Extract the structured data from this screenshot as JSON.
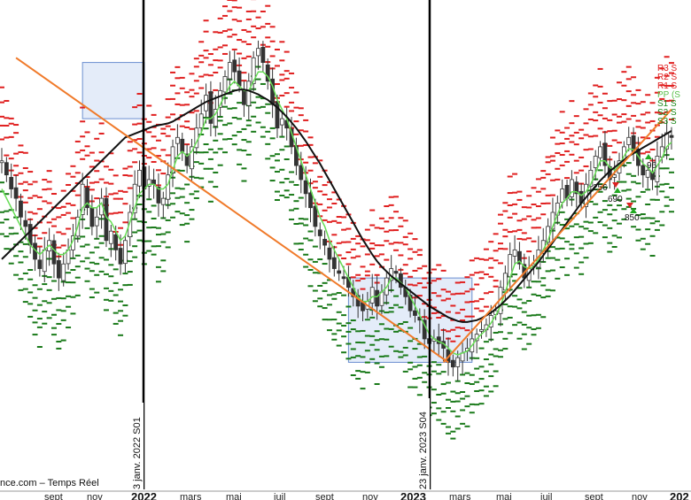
{
  "source_label": "nce.com – Temps Réel",
  "chart_data": {
    "type": "candlestick",
    "x_axis": {
      "months": [
        "sept",
        "nov",
        "mars",
        "mai",
        "juil",
        "sept",
        "nov",
        "mars",
        "mai",
        "juil",
        "sept",
        "nov"
      ],
      "years": [
        "2022",
        "2023",
        "202"
      ]
    },
    "period_markers": [
      "3 janv. 2022 S01",
      "23 janv. 2023 S04"
    ],
    "annotations": [
      "256",
      "690",
      "850",
      "96"
    ],
    "sr_labels": [
      "R3 S",
      "R2 S",
      "R1 S",
      "PP (S",
      "S1 S",
      "S2 S",
      "S3 S"
    ],
    "series": [
      {
        "name": "close",
        "color": "#333333",
        "values": [
          285,
          270,
          255,
          245,
          225,
          215,
          195,
          180,
          170,
          190,
          200,
          175,
          160,
          175,
          190,
          205,
          225,
          260,
          235,
          215,
          225,
          245,
          200,
          210,
          190,
          175,
          200,
          230,
          260,
          275,
          255,
          265,
          260,
          240,
          245,
          270,
          300,
          310,
          295,
          280,
          300,
          320,
          335,
          355,
          325,
          340,
          360,
          375,
          390,
          380,
          365,
          345,
          370,
          395,
          405,
          390,
          370,
          345,
          320,
          330,
          320,
          300,
          280,
          265,
          250,
          235,
          215,
          205,
          195,
          180,
          170,
          165,
          160,
          150,
          140,
          130,
          125,
          135,
          150,
          130,
          145,
          160,
          170,
          165,
          150,
          140,
          125,
          120,
          115,
          95,
          90,
          95,
          90,
          85,
          70,
          65,
          75,
          80,
          85,
          95,
          100,
          105,
          110,
          120,
          125,
          150,
          165,
          185,
          190,
          175,
          160,
          170,
          175,
          190,
          200,
          215,
          230,
          240,
          255,
          245,
          265,
          250,
          240,
          260,
          275,
          290,
          300,
          280,
          265,
          270,
          285,
          300,
          310,
          295,
          280,
          270,
          275,
          265,
          290,
          300,
          315,
          310
        ]
      },
      {
        "name": "moving-average-short",
        "color": "#66dd55",
        "values": [
          255,
          245,
          235,
          225,
          215,
          205,
          195,
          190,
          185,
          190,
          195,
          190,
          185,
          185,
          190,
          200,
          215,
          235,
          240,
          235,
          235,
          240,
          225,
          220,
          210,
          200,
          205,
          220,
          235,
          250,
          255,
          260,
          260,
          255,
          255,
          260,
          275,
          290,
          295,
          290,
          295,
          305,
          315,
          330,
          330,
          335,
          345,
          355,
          365,
          370,
          365,
          360,
          360,
          370,
          380,
          380,
          375,
          365,
          350,
          340,
          330,
          315,
          300,
          285,
          270,
          255,
          240,
          225,
          215,
          200,
          190,
          180,
          170,
          160,
          150,
          140,
          135,
          135,
          140,
          140,
          145,
          150,
          160,
          160,
          155,
          150,
          140,
          130,
          120,
          110,
          100,
          95,
          92,
          90,
          85,
          80,
          78,
          80,
          82,
          88,
          95,
          100,
          105,
          112,
          120,
          130,
          145,
          160,
          175,
          178,
          172,
          170,
          172,
          180,
          190,
          200,
          215,
          228,
          240,
          245,
          252,
          252,
          248,
          252,
          260,
          272,
          285,
          285,
          278,
          275,
          280,
          290,
          298,
          297,
          290,
          282,
          278,
          272,
          280,
          288,
          300,
          305
        ]
      },
      {
        "name": "moving-average-long",
        "color": "#111111",
        "values": [
          180,
          185,
          190,
          195,
          200,
          205,
          210,
          215,
          220,
          225,
          230,
          235,
          240,
          245,
          250,
          255,
          260,
          265,
          270,
          275,
          280,
          285,
          290,
          295,
          300,
          305,
          310,
          312,
          314,
          316,
          318,
          320,
          322,
          323,
          324,
          325,
          327,
          330,
          333,
          336,
          339,
          342,
          345,
          348,
          350,
          352,
          354,
          356,
          358,
          360,
          361,
          361,
          360,
          358,
          356,
          353,
          350,
          346,
          342,
          337,
          332,
          326,
          320,
          313,
          306,
          298,
          290,
          282,
          273,
          264,
          255,
          246,
          237,
          228,
          219,
          210,
          201,
          193,
          185,
          178,
          172,
          167,
          162,
          158,
          154,
          150,
          146,
          142,
          138,
          134,
          130,
          127,
          124,
          121,
          118,
          116,
          114,
          113,
          113,
          114,
          115,
          117,
          120,
          123,
          127,
          131,
          136,
          141,
          147,
          153,
          159,
          165,
          171,
          177,
          184,
          191,
          198,
          205,
          212,
          219,
          226,
          233,
          240,
          246,
          252,
          258,
          264,
          269,
          274,
          278,
          282,
          286,
          290,
          293,
          296,
          299,
          302,
          305,
          308,
          311,
          314,
          317
        ]
      }
    ],
    "trend_lines": [
      {
        "name": "downtrend-line",
        "color": "#f07a2a",
        "from": [
          3,
          395
        ],
        "to": [
          94,
          70
        ]
      },
      {
        "name": "uptrend-line",
        "color": "#f07a2a",
        "from": [
          93,
          70
        ],
        "to": [
          141,
          340
        ]
      }
    ],
    "zones": [
      {
        "name": "zone-2021-top",
        "from": [
          17,
          390
        ],
        "to": [
          30,
          330
        ]
      },
      {
        "name": "zone-2022-bottom",
        "from": [
          73,
          160
        ],
        "to": [
          99,
          70
        ]
      }
    ],
    "grid": false,
    "y_axis": "not shown"
  }
}
